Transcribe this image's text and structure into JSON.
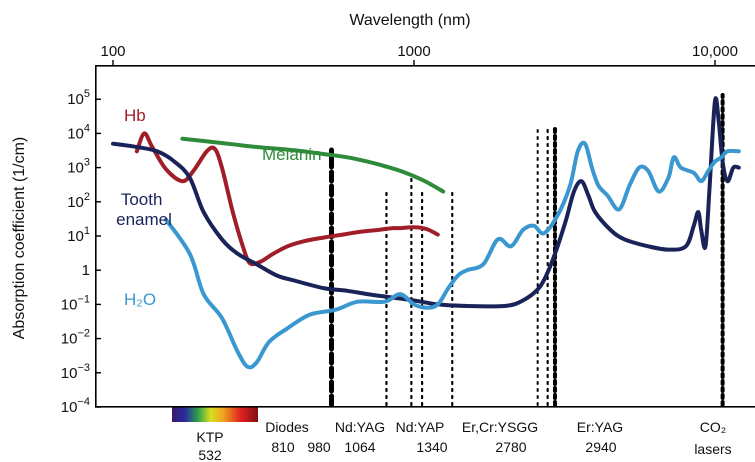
{
  "chart_data": {
    "type": "line",
    "title": "",
    "xlabel": "Wavelength (nm)",
    "ylabel": "Absorption coefficient (1/cm)",
    "x_scale": "log",
    "y_scale": "log",
    "xlim": [
      100,
      12000
    ],
    "ylim": [
      0.0001,
      300000
    ],
    "x_ticks": [
      {
        "value": 100,
        "label": "100"
      },
      {
        "value": 1000,
        "label": "1000"
      },
      {
        "value": 10000,
        "label": "10,000"
      }
    ],
    "y_ticks": [
      {
        "value": 100000,
        "base": "10",
        "exp": "5"
      },
      {
        "value": 10000,
        "base": "10",
        "exp": "4"
      },
      {
        "value": 1000,
        "base": "10",
        "exp": "3"
      },
      {
        "value": 100,
        "base": "10",
        "exp": "2"
      },
      {
        "value": 10,
        "base": "10",
        "exp": "1"
      },
      {
        "value": 1,
        "base": "1",
        "exp": ""
      },
      {
        "value": 0.1,
        "base": "10",
        "exp": "−1"
      },
      {
        "value": 0.01,
        "base": "10",
        "exp": "−2"
      },
      {
        "value": 0.001,
        "base": "10",
        "exp": "−3"
      },
      {
        "value": 0.0001,
        "base": "10",
        "exp": "−4"
      }
    ],
    "series": [
      {
        "name": "Hb",
        "color": "#a01e28",
        "points": [
          [
            120,
            3000
          ],
          [
            127,
            10000
          ],
          [
            135,
            4000
          ],
          [
            150,
            900
          ],
          [
            170,
            400
          ],
          [
            185,
            800
          ],
          [
            205,
            3000
          ],
          [
            218,
            3500
          ],
          [
            230,
            1000
          ],
          [
            250,
            50
          ],
          [
            270,
            5
          ],
          [
            285,
            1.6
          ],
          [
            310,
            1.8
          ],
          [
            340,
            3
          ],
          [
            380,
            5
          ],
          [
            430,
            7
          ],
          [
            500,
            9
          ],
          [
            580,
            11
          ],
          [
            650,
            13
          ],
          [
            700,
            14
          ],
          [
            760,
            15
          ],
          [
            800,
            16
          ],
          [
            850,
            17
          ],
          [
            900,
            17
          ],
          [
            1000,
            18
          ],
          [
            1100,
            16
          ],
          [
            1200,
            11
          ]
        ]
      },
      {
        "name": "Melanin",
        "color": "#2e8b3a",
        "points": [
          [
            170,
            7000
          ],
          [
            200,
            6000
          ],
          [
            250,
            4800
          ],
          [
            300,
            4000
          ],
          [
            400,
            3200
          ],
          [
            500,
            2500
          ],
          [
            600,
            2000
          ],
          [
            700,
            1500
          ],
          [
            800,
            1100
          ],
          [
            900,
            800
          ],
          [
            1000,
            560
          ],
          [
            1100,
            380
          ],
          [
            1250,
            200
          ]
        ]
      },
      {
        "name": "Tooth\nenamel",
        "color": "#1a2358",
        "points": [
          [
            100,
            5000
          ],
          [
            120,
            4000
          ],
          [
            140,
            3000
          ],
          [
            160,
            1500
          ],
          [
            180,
            500
          ],
          [
            200,
            50
          ],
          [
            230,
            8
          ],
          [
            260,
            3
          ],
          [
            300,
            1.5
          ],
          [
            350,
            0.7
          ],
          [
            400,
            0.5
          ],
          [
            500,
            0.3
          ],
          [
            600,
            0.25
          ],
          [
            700,
            0.2
          ],
          [
            800,
            0.17
          ],
          [
            1000,
            0.13
          ],
          [
            1200,
            0.1
          ],
          [
            1500,
            0.09
          ],
          [
            2000,
            0.09
          ],
          [
            2300,
            0.13
          ],
          [
            2600,
            0.3
          ],
          [
            2800,
            1
          ],
          [
            3000,
            5
          ],
          [
            3200,
            30
          ],
          [
            3400,
            200
          ],
          [
            3600,
            400
          ],
          [
            3800,
            150
          ],
          [
            4000,
            50
          ],
          [
            4500,
            15
          ],
          [
            5000,
            8
          ],
          [
            6000,
            5
          ],
          [
            7000,
            4
          ],
          [
            8000,
            5
          ],
          [
            8500,
            20
          ],
          [
            8800,
            50
          ],
          [
            9000,
            15
          ],
          [
            9300,
            5
          ],
          [
            9600,
            300
          ],
          [
            10000,
            90000
          ],
          [
            10300,
            20000
          ],
          [
            10600,
            1500
          ],
          [
            11000,
            400
          ],
          [
            11500,
            1000
          ],
          [
            12000,
            1000
          ]
        ]
      },
      {
        "name": "H₂O",
        "color": "#3a97cf",
        "points": [
          [
            150,
            30
          ],
          [
            180,
            3
          ],
          [
            200,
            0.2
          ],
          [
            230,
            0.04
          ],
          [
            260,
            0.004
          ],
          [
            280,
            0.0015
          ],
          [
            300,
            0.002
          ],
          [
            330,
            0.008
          ],
          [
            380,
            0.02
          ],
          [
            450,
            0.05
          ],
          [
            550,
            0.07
          ],
          [
            650,
            0.12
          ],
          [
            800,
            0.12
          ],
          [
            900,
            0.2
          ],
          [
            1000,
            0.1
          ],
          [
            1100,
            0.08
          ],
          [
            1200,
            0.1
          ],
          [
            1300,
            0.3
          ],
          [
            1400,
            0.7
          ],
          [
            1500,
            1
          ],
          [
            1700,
            1.5
          ],
          [
            1900,
            8
          ],
          [
            2100,
            5
          ],
          [
            2300,
            15
          ],
          [
            2500,
            20
          ],
          [
            2700,
            12
          ],
          [
            3000,
            40
          ],
          [
            3300,
            300
          ],
          [
            3500,
            3000
          ],
          [
            3700,
            5000
          ],
          [
            3900,
            1000
          ],
          [
            4100,
            300
          ],
          [
            4400,
            150
          ],
          [
            4800,
            60
          ],
          [
            5200,
            300
          ],
          [
            5600,
            1000
          ],
          [
            6000,
            800
          ],
          [
            6500,
            200
          ],
          [
            7000,
            500
          ],
          [
            7300,
            2000
          ],
          [
            7700,
            1000
          ],
          [
            8500,
            700
          ],
          [
            9000,
            400
          ],
          [
            9500,
            800
          ],
          [
            10000,
            1500
          ],
          [
            10500,
            2000
          ],
          [
            11000,
            3000
          ],
          [
            12000,
            3000
          ]
        ]
      }
    ],
    "lasers": [
      {
        "name": "KTP",
        "wavelength_label": "532",
        "x": 532,
        "style": "heavy-dashed"
      },
      {
        "name": "Diodes",
        "wavelength_label": "810",
        "x": 810,
        "style": "dotted"
      },
      {
        "name": "",
        "wavelength_label": "980",
        "x": 980,
        "style": "dotted"
      },
      {
        "name": "Nd:YAG",
        "wavelength_label": "1064",
        "x": 1064,
        "style": "dotted"
      },
      {
        "name": "Nd:YAP",
        "wavelength_label": "1340",
        "x": 1340,
        "style": "dotted"
      },
      {
        "name": "Er,Cr:YSGG",
        "wavelength_label": "2780",
        "x": 2780,
        "style": "dotted"
      },
      {
        "name": "Er:YAG",
        "wavelength_label": "2940",
        "x": 2940,
        "style": "heavy-dotted"
      },
      {
        "name": "CO₂",
        "sub_label": "lasers",
        "wavelength_label": "",
        "x": 10600,
        "style": "heavy-dotted"
      }
    ],
    "legend": "inline labels on curves",
    "grid": false
  }
}
